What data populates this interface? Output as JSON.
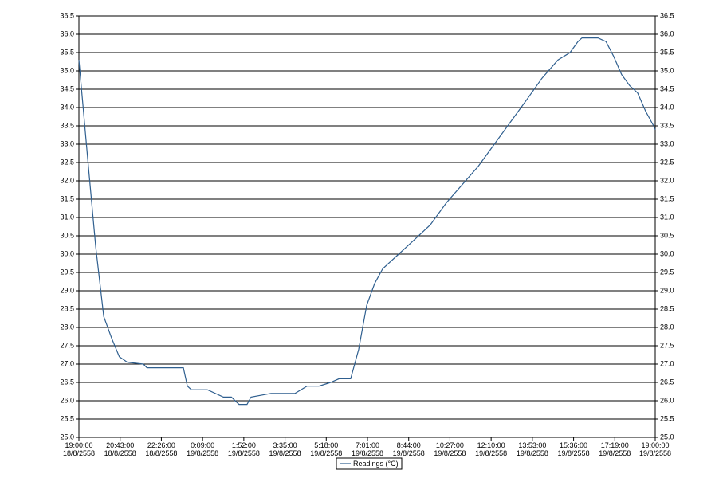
{
  "chart_data": {
    "type": "line",
    "x": [
      0,
      22,
      42,
      62,
      82,
      101,
      121,
      161,
      170,
      201,
      261,
      271,
      281,
      321,
      361,
      381,
      400,
      420,
      430,
      480,
      540,
      570,
      600,
      629,
      650,
      679,
      699,
      719,
      739,
      759,
      779,
      799,
      839,
      878,
      918,
      958,
      998,
      1038,
      1078,
      1118,
      1157,
      1197,
      1227,
      1247,
      1257,
      1297,
      1317,
      1336,
      1356,
      1376,
      1396,
      1416,
      1436,
      1440
    ],
    "series": [
      {
        "name": "Readings (°C)",
        "color": "#2f5f8f",
        "values": [
          35.3,
          32.6,
          30.2,
          28.3,
          27.7,
          27.2,
          27.05,
          27.0,
          26.9,
          26.9,
          26.9,
          26.4,
          26.3,
          26.3,
          26.1,
          26.1,
          25.9,
          25.9,
          26.1,
          26.2,
          26.2,
          26.4,
          26.4,
          26.5,
          26.6,
          26.6,
          27.4,
          28.6,
          29.2,
          29.6,
          29.8,
          30.0,
          30.4,
          30.8,
          31.4,
          31.9,
          32.4,
          33.0,
          33.6,
          34.2,
          34.8,
          35.3,
          35.5,
          35.8,
          35.9,
          35.9,
          35.8,
          35.4,
          34.9,
          34.6,
          34.4,
          33.9,
          33.5,
          33.4
        ]
      }
    ],
    "xlim": [
      0,
      1440
    ],
    "xticks": [
      {
        "value": 0,
        "label": "19:00:00\n18/8/2558"
      },
      {
        "value": 103,
        "label": "20:43:00\n18/8/2558"
      },
      {
        "value": 206,
        "label": "22:26:00\n18/8/2558"
      },
      {
        "value": 309,
        "label": "0:09:00\n19/8/2558"
      },
      {
        "value": 412,
        "label": "1:52:00\n19/8/2558"
      },
      {
        "value": 515,
        "label": "3:35:00\n19/8/2558"
      },
      {
        "value": 618,
        "label": "5:18:00\n19/8/2558"
      },
      {
        "value": 721,
        "label": "7:01:00\n19/8/2558"
      },
      {
        "value": 824,
        "label": "8:44:00\n19/8/2558"
      },
      {
        "value": 927,
        "label": "10:27:00\n19/8/2558"
      },
      {
        "value": 1030,
        "label": "12:10:00\n19/8/2558"
      },
      {
        "value": 1133,
        "label": "13:53:00\n19/8/2558"
      },
      {
        "value": 1236,
        "label": "15:36:00\n19/8/2558"
      },
      {
        "value": 1339,
        "label": "17:19:00\n19/8/2558"
      },
      {
        "value": 1440,
        "label": "19:00:00\n19/8/2558"
      }
    ],
    "ylim": [
      25,
      36.5
    ],
    "yticks": [
      {
        "value": 25,
        "label": "25.0"
      },
      {
        "value": 25.5,
        "label": "25.5"
      },
      {
        "value": 26,
        "label": "26.0"
      },
      {
        "value": 26.5,
        "label": "26.5"
      },
      {
        "value": 27,
        "label": "27.0"
      },
      {
        "value": 27.5,
        "label": "27.5"
      },
      {
        "value": 28,
        "label": "28.0"
      },
      {
        "value": 28.5,
        "label": "28.5"
      },
      {
        "value": 29,
        "label": "29.0"
      },
      {
        "value": 29.5,
        "label": "29.5"
      },
      {
        "value": 30,
        "label": "30.0"
      },
      {
        "value": 30.5,
        "label": "30.5"
      },
      {
        "value": 31,
        "label": "31.0"
      },
      {
        "value": 31.5,
        "label": "31.5"
      },
      {
        "value": 32,
        "label": "32.0"
      },
      {
        "value": 32.5,
        "label": "32.5"
      },
      {
        "value": 33,
        "label": "33.0"
      },
      {
        "value": 33.5,
        "label": "33.5"
      },
      {
        "value": 34,
        "label": "34.0"
      },
      {
        "value": 34.5,
        "label": "34.5"
      },
      {
        "value": 35,
        "label": "35.0"
      },
      {
        "value": 35.5,
        "label": "35.5"
      },
      {
        "value": 36,
        "label": "36.0"
      },
      {
        "value": 36.5,
        "label": "36.5"
      }
    ],
    "grid": true,
    "right_axis": true,
    "legend": "bottom"
  }
}
